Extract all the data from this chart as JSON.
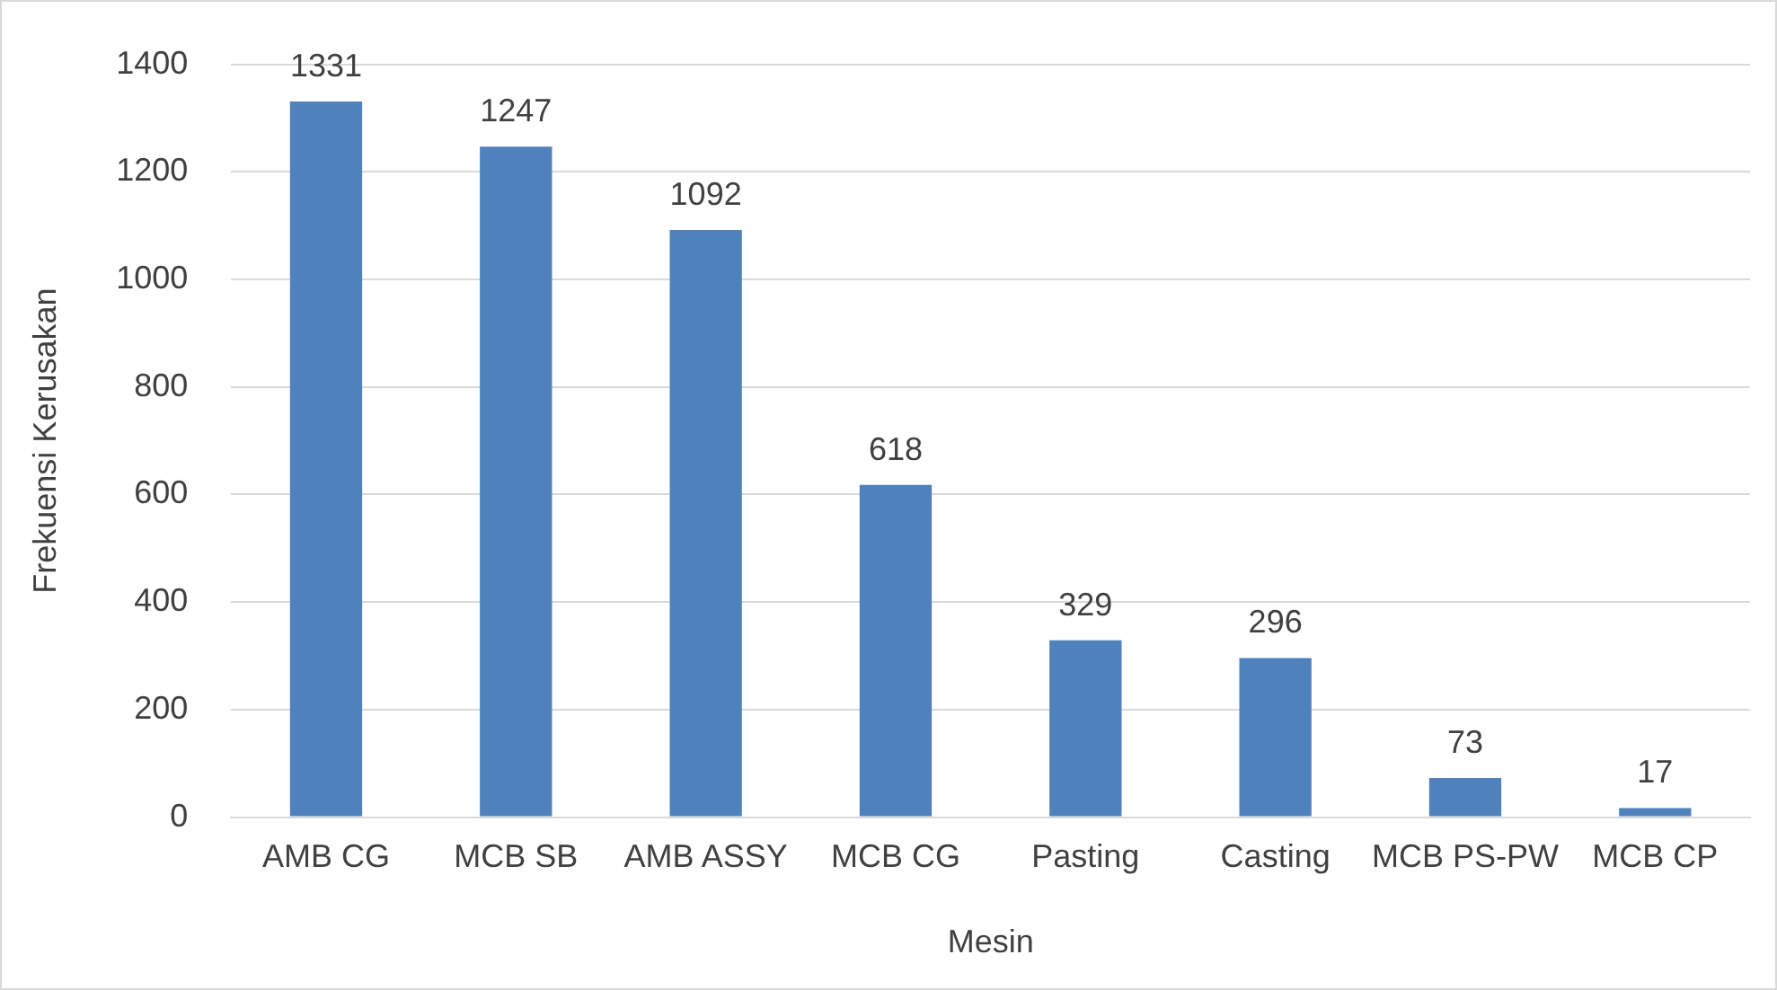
{
  "chart_data": {
    "type": "bar",
    "xlabel": "Mesin",
    "ylabel": "Frekuensi Kerusakan",
    "categories": [
      "AMB CG",
      "MCB SB",
      "AMB ASSY",
      "MCB CG",
      "Pasting",
      "Casting",
      "MCB PS-PW",
      "MCB CP"
    ],
    "values": [
      1331,
      1247,
      1092,
      618,
      329,
      296,
      73,
      17
    ],
    "color": "#4f81bd",
    "ylim": [
      0,
      1400
    ],
    "yticks": [
      0,
      200,
      400,
      600,
      800,
      1000,
      1200,
      1400
    ],
    "grid": "y",
    "data_labels": true,
    "legend": false
  }
}
